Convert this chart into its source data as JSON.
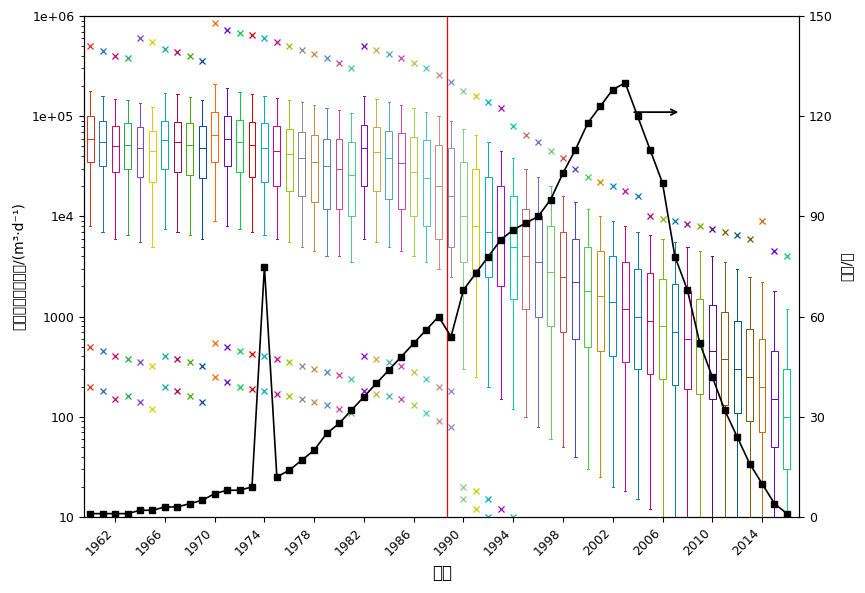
{
  "xlabel": "年份",
  "ylabel_left": "晴天日平均处理量/(m³·d⁻¹)",
  "ylabel_right": "数量/座",
  "xlim": [
    1959.5,
    2017.0
  ],
  "ylim_log": [
    10,
    1000000
  ],
  "ylim_right": [
    0,
    150
  ],
  "red_vline_x": 1988.7,
  "count_years": [
    1960,
    1961,
    1962,
    1963,
    1964,
    1965,
    1966,
    1967,
    1968,
    1969,
    1970,
    1971,
    1972,
    1973,
    1974,
    1975,
    1976,
    1977,
    1978,
    1979,
    1980,
    1981,
    1982,
    1983,
    1984,
    1985,
    1986,
    1987,
    1988,
    1989,
    1990,
    1991,
    1992,
    1993,
    1994,
    1995,
    1996,
    1997,
    1998,
    1999,
    2000,
    2001,
    2002,
    2003,
    2004,
    2005,
    2006,
    2007,
    2008,
    2009,
    2010,
    2011,
    2012,
    2013,
    2014,
    2015,
    2016
  ],
  "count_values": [
    1,
    1,
    1,
    1,
    2,
    2,
    3,
    3,
    4,
    5,
    7,
    8,
    8,
    9,
    75,
    12,
    14,
    17,
    20,
    25,
    28,
    32,
    36,
    40,
    44,
    48,
    52,
    56,
    60,
    54,
    68,
    73,
    78,
    83,
    86,
    88,
    90,
    95,
    103,
    110,
    118,
    123,
    128,
    130,
    120,
    110,
    100,
    78,
    68,
    52,
    42,
    32,
    24,
    16,
    10,
    4,
    1
  ],
  "box_years": [
    1960,
    1961,
    1962,
    1963,
    1964,
    1965,
    1966,
    1967,
    1968,
    1969,
    1970,
    1971,
    1972,
    1973,
    1974,
    1975,
    1976,
    1977,
    1978,
    1979,
    1980,
    1981,
    1982,
    1983,
    1984,
    1985,
    1986,
    1987,
    1988,
    1989,
    1990,
    1991,
    1992,
    1993,
    1994,
    1995,
    1996,
    1997,
    1998,
    1999,
    2000,
    2001,
    2002,
    2003,
    2004,
    2005,
    2006,
    2007,
    2008,
    2009,
    2010,
    2011,
    2012,
    2013,
    2014,
    2015,
    2016
  ],
  "box_colors": [
    "#e03010",
    "#1a6fbf",
    "#cc0066",
    "#22aa44",
    "#7744cc",
    "#ddcc00",
    "#00aaaa",
    "#aa0044",
    "#44aa00",
    "#0044aa",
    "#ff6600",
    "#6600cc",
    "#00cc44",
    "#cc0000",
    "#00aacc",
    "#cc0088",
    "#88cc00",
    "#888888",
    "#cc8844",
    "#4488cc",
    "#cc4488",
    "#44cc88",
    "#8800cc",
    "#ccaa44",
    "#44aacc",
    "#cc44aa",
    "#aacc44",
    "#44ccaa",
    "#cc8888",
    "#8888cc",
    "#88cc88",
    "#cccc00",
    "#00aacc",
    "#aa00cc",
    "#00ccaa",
    "#cc6666",
    "#6666cc",
    "#66cc66",
    "#cc4444",
    "#4444cc",
    "#44cc44",
    "#cc8800",
    "#0088cc",
    "#cc0088",
    "#0077bb",
    "#bb0077",
    "#77bb00",
    "#0077aa",
    "#aa0077",
    "#77aa00",
    "#550088",
    "#885500",
    "#005577",
    "#775500",
    "#cc6600",
    "#6600cc",
    "#00cc77"
  ],
  "box_q1": [
    35000,
    32000,
    28000,
    30000,
    25000,
    22000,
    30000,
    28000,
    26000,
    24000,
    35000,
    32000,
    28000,
    25000,
    22000,
    20000,
    18000,
    16000,
    14000,
    12000,
    12000,
    10000,
    20000,
    18000,
    15000,
    12000,
    10000,
    8000,
    6000,
    5000,
    3500,
    3000,
    2500,
    2000,
    1500,
    1200,
    1000,
    800,
    700,
    600,
    500,
    450,
    400,
    350,
    300,
    270,
    240,
    210,
    190,
    170,
    150,
    130,
    110,
    90,
    70,
    50,
    30
  ],
  "box_med": [
    60000,
    55000,
    50000,
    52000,
    48000,
    45000,
    58000,
    55000,
    52000,
    48000,
    65000,
    60000,
    55000,
    52000,
    48000,
    45000,
    42000,
    38000,
    35000,
    32000,
    30000,
    26000,
    48000,
    44000,
    38000,
    34000,
    28000,
    24000,
    20000,
    16000,
    10000,
    8000,
    7000,
    6000,
    5000,
    4000,
    3500,
    2800,
    2500,
    2200,
    1800,
    1600,
    1400,
    1200,
    1000,
    900,
    800,
    700,
    600,
    500,
    450,
    380,
    300,
    250,
    200,
    150,
    100
  ],
  "box_q3": [
    100000,
    90000,
    80000,
    85000,
    78000,
    72000,
    90000,
    88000,
    85000,
    80000,
    110000,
    100000,
    92000,
    88000,
    85000,
    80000,
    75000,
    70000,
    65000,
    60000,
    60000,
    55000,
    82000,
    78000,
    72000,
    68000,
    62000,
    58000,
    52000,
    48000,
    35000,
    30000,
    25000,
    20000,
    16000,
    12000,
    10000,
    8000,
    7000,
    6000,
    5000,
    4500,
    4000,
    3500,
    3000,
    2700,
    2400,
    2100,
    1800,
    1500,
    1300,
    1100,
    900,
    750,
    600,
    450,
    300
  ],
  "box_wlo": [
    8000,
    7000,
    6000,
    6500,
    5500,
    5000,
    7500,
    7000,
    6500,
    6000,
    9000,
    8000,
    7500,
    7000,
    6500,
    6000,
    5500,
    5000,
    4500,
    4000,
    4000,
    3500,
    6000,
    5500,
    5000,
    4500,
    4000,
    3500,
    3000,
    2500,
    300,
    250,
    200,
    150,
    120,
    100,
    80,
    60,
    50,
    40,
    30,
    25,
    20,
    18,
    15,
    12,
    10,
    10,
    10,
    10,
    10,
    10,
    10,
    10,
    10,
    10,
    10
  ],
  "box_whi": [
    180000,
    160000,
    150000,
    145000,
    135000,
    125000,
    170000,
    165000,
    155000,
    145000,
    210000,
    190000,
    175000,
    168000,
    160000,
    152000,
    145000,
    138000,
    130000,
    120000,
    115000,
    108000,
    160000,
    150000,
    140000,
    130000,
    120000,
    110000,
    100000,
    90000,
    75000,
    65000,
    55000,
    45000,
    38000,
    30000,
    25000,
    20000,
    16000,
    14000,
    12000,
    10000,
    9000,
    8000,
    7000,
    6500,
    6000,
    5500,
    5000,
    4500,
    4000,
    3500,
    3000,
    2500,
    2200,
    1800,
    1200
  ],
  "box_flo1": [
    500,
    450,
    400,
    380,
    350,
    320,
    400,
    380,
    350,
    320,
    550,
    500,
    450,
    420,
    400,
    380,
    350,
    320,
    300,
    280,
    260,
    240,
    400,
    380,
    350,
    320,
    280,
    240,
    200,
    180,
    15,
    12,
    10,
    8,
    6,
    5,
    4,
    3,
    2.5,
    2,
    1.5,
    1.2,
    1,
    1,
    1,
    1,
    1,
    1,
    1,
    1,
    1,
    1,
    1,
    1,
    1,
    1,
    1
  ],
  "box_flo2": [
    200,
    180,
    150,
    160,
    140,
    120,
    200,
    180,
    160,
    140,
    250,
    220,
    200,
    190,
    180,
    170,
    160,
    150,
    140,
    130,
    120,
    110,
    180,
    170,
    160,
    150,
    130,
    110,
    90,
    80,
    20,
    18,
    15,
    12,
    10,
    8,
    6,
    5,
    4,
    3,
    2.5,
    2,
    1.5,
    1.2,
    1,
    1,
    1,
    1,
    1,
    1,
    1,
    1,
    1,
    1,
    1,
    1,
    1
  ],
  "box_fhi": [
    500000,
    450000,
    400000,
    380000,
    600000,
    550000,
    470000,
    440000,
    400000,
    360000,
    850000,
    720000,
    680000,
    650000,
    600000,
    550000,
    500000,
    460000,
    420000,
    380000,
    340000,
    300000,
    500000,
    460000,
    420000,
    380000,
    340000,
    300000,
    260000,
    220000,
    180000,
    160000,
    140000,
    120000,
    80000,
    65000,
    55000,
    45000,
    38000,
    30000,
    25000,
    22000,
    20000,
    18000,
    16000,
    10000,
    9500,
    9000,
    8500,
    8000,
    7500,
    7000,
    6500,
    6000,
    9000,
    4500,
    4000
  ]
}
